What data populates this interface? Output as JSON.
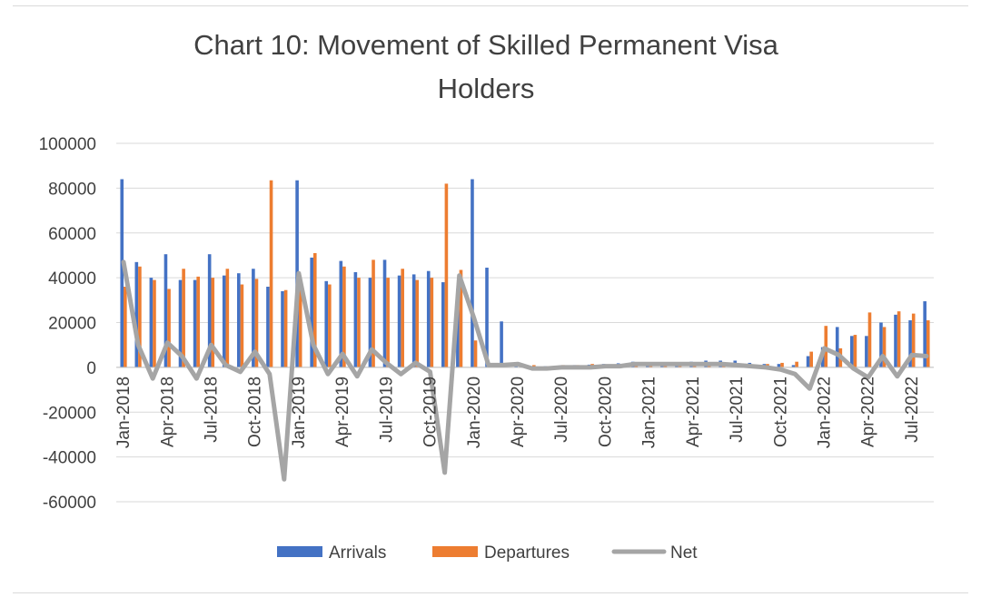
{
  "chart_data": {
    "type": "bar",
    "title": "Chart 10: Movement of Skilled Permanent Visa Holders",
    "title_lines": [
      "Chart 10: Movement of Skilled Permanent Visa",
      "Holders"
    ],
    "ylim": [
      -60000,
      100000
    ],
    "yticks": [
      100000,
      80000,
      60000,
      40000,
      20000,
      0,
      -20000,
      -40000,
      -60000
    ],
    "grid": true,
    "legend_position": "bottom",
    "x": [
      "Jan-2018",
      "Feb-2018",
      "Mar-2018",
      "Apr-2018",
      "May-2018",
      "Jun-2018",
      "Jul-2018",
      "Aug-2018",
      "Sep-2018",
      "Oct-2018",
      "Nov-2018",
      "Dec-2018",
      "Jan-2019",
      "Feb-2019",
      "Mar-2019",
      "Apr-2019",
      "May-2019",
      "Jun-2019",
      "Jul-2019",
      "Aug-2019",
      "Sep-2019",
      "Oct-2019",
      "Nov-2019",
      "Dec-2019",
      "Jan-2020",
      "Feb-2020",
      "Mar-2020",
      "Apr-2020",
      "May-2020",
      "Jun-2020",
      "Jul-2020",
      "Aug-2020",
      "Sep-2020",
      "Oct-2020",
      "Nov-2020",
      "Dec-2020",
      "Jan-2021",
      "Feb-2021",
      "Mar-2021",
      "Apr-2021",
      "May-2021",
      "Jun-2021",
      "Jul-2021",
      "Aug-2021",
      "Sep-2021",
      "Oct-2021",
      "Nov-2021",
      "Dec-2021",
      "Jan-2022",
      "Feb-2022",
      "Mar-2022",
      "Apr-2022",
      "May-2022",
      "Jun-2022",
      "Jul-2022",
      "Aug-2022"
    ],
    "x_tick_labels": [
      "Jan-2018",
      "Apr-2018",
      "Jul-2018",
      "Oct-2018",
      "Jan-2019",
      "Apr-2019",
      "Jul-2019",
      "Oct-2019",
      "Jan-2020",
      "Apr-2020",
      "Jul-2020",
      "Oct-2020",
      "Jan-2021",
      "Apr-2021",
      "Jul-2021",
      "Oct-2021",
      "Jan-2022",
      "Apr-2022",
      "Jul-2022"
    ],
    "series": [
      {
        "name": "Arrivals",
        "type": "bar",
        "color": "#4472c4",
        "values": [
          84000,
          47000,
          40000,
          50500,
          39000,
          39000,
          50500,
          41000,
          42000,
          44000,
          36000,
          34000,
          83500,
          49000,
          38500,
          47500,
          42500,
          40000,
          48000,
          41000,
          41500,
          43000,
          38000,
          35000,
          84000,
          44500,
          20500,
          500,
          300,
          500,
          800,
          1000,
          1200,
          1500,
          1800,
          2500,
          2000,
          2000,
          2000,
          2500,
          3000,
          3000,
          3000,
          2000,
          1500,
          1500,
          1000,
          5000,
          9000,
          18000,
          14000,
          14000,
          20000,
          23500,
          21000,
          29500
        ]
      },
      {
        "name": "Departures",
        "type": "bar",
        "color": "#ed7d31",
        "values": [
          36000,
          45000,
          39000,
          35000,
          44000,
          40500,
          40000,
          44000,
          37000,
          39500,
          83500,
          34500,
          35500,
          51000,
          37000,
          45000,
          40000,
          48000,
          40000,
          44000,
          39000,
          40000,
          82000,
          43500,
          12000,
          0,
          0,
          0,
          1000,
          500,
          1000,
          1000,
          1500,
          1000,
          1500,
          1500,
          1500,
          1500,
          1500,
          1500,
          1500,
          1000,
          1000,
          1000,
          1500,
          2000,
          2500,
          7000,
          18500,
          8500,
          14500,
          24500,
          18000,
          25000,
          24000,
          21000
        ]
      },
      {
        "name": "Net",
        "type": "line",
        "color": "#a5a5a5",
        "values": [
          47000,
          10000,
          -5000,
          11000,
          5000,
          -5000,
          10000,
          1000,
          -2000,
          7000,
          -3000,
          -50000,
          42000,
          10000,
          -3000,
          6000,
          -4000,
          8000,
          2000,
          -3000,
          2000,
          -2000,
          -47000,
          41000,
          22000,
          1000,
          1000,
          1500,
          -500,
          -500,
          0,
          0,
          0,
          500,
          500,
          1500,
          1500,
          1500,
          1500,
          1500,
          1500,
          1500,
          1000,
          500,
          0,
          -1000,
          -3000,
          -9500,
          8500,
          5500,
          -500,
          -4500,
          5000,
          -4000,
          5500,
          5000
        ]
      }
    ]
  }
}
